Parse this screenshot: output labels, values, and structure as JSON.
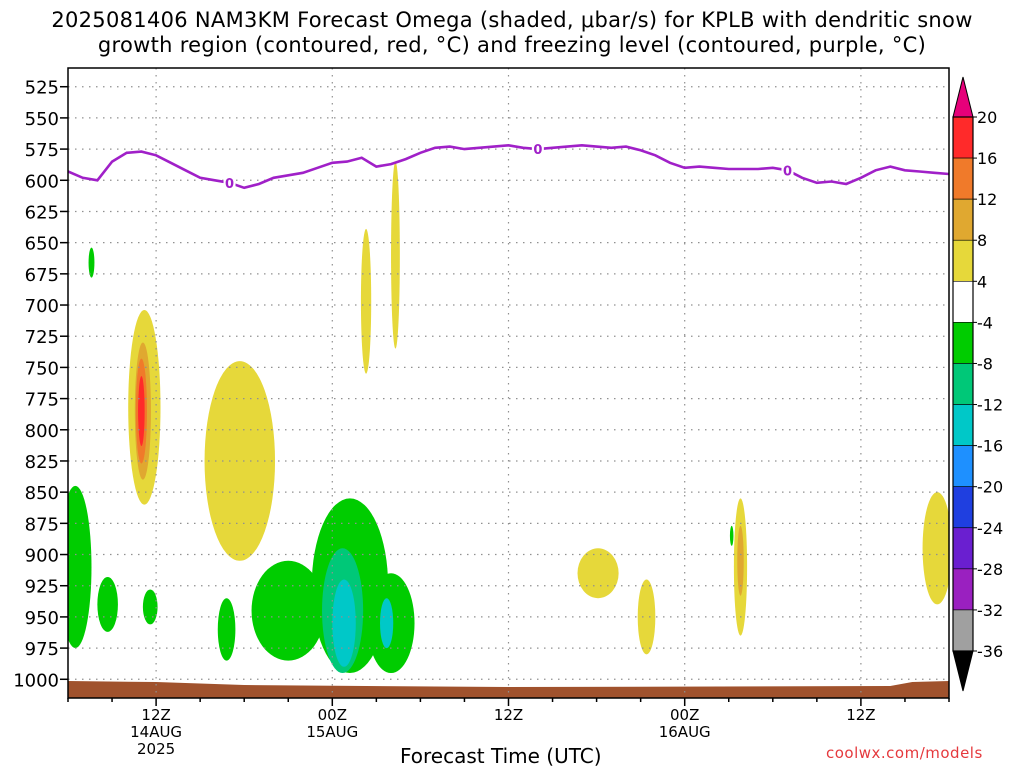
{
  "title_line1": "2025081406 NAM3KM Forecast Omega (shaded, μbar/s) for KPLB with dendritic snow",
  "title_line2": "growth region (contoured, red, °C) and freezing level (contoured, purple, °C)",
  "x_axis_title": "Forecast Time (UTC)",
  "credit": "coolwx.com/models",
  "colors": {
    "freezing_level": "#a020c8",
    "terrain": "#a0522d",
    "grid": "#909090"
  },
  "chart_data": {
    "type": "heatmap",
    "xlabel": "Forecast Time (UTC)",
    "y_scale": "pressure (hPa), reversed",
    "ylim": [
      1015,
      510
    ],
    "xlim_forecast_hours": [
      0,
      60
    ],
    "y_ticks": [
      525,
      550,
      575,
      600,
      625,
      650,
      675,
      700,
      725,
      750,
      775,
      800,
      825,
      850,
      875,
      900,
      925,
      950,
      975,
      1000
    ],
    "x_ticks": [
      {
        "hour": 6,
        "lines": [
          "12Z",
          "14AUG",
          "2025"
        ]
      },
      {
        "hour": 18,
        "lines": [
          "00Z",
          "15AUG"
        ]
      },
      {
        "hour": 30,
        "lines": [
          "12Z"
        ]
      },
      {
        "hour": 42,
        "lines": [
          "00Z",
          "16AUG"
        ]
      },
      {
        "hour": 54,
        "lines": [
          "12Z"
        ]
      }
    ],
    "colorbar": {
      "labels": [
        "20",
        "16",
        "12",
        "8",
        "4",
        "-4",
        "-8",
        "-12",
        "-16",
        "-20",
        "-24",
        "-28",
        "-32",
        "-36"
      ],
      "colors": [
        "#ff2a2a",
        "#f07a2a",
        "#e0a830",
        "#e6d83a",
        "#ffffff",
        "#00cc00",
        "#00c878",
        "#00c8c8",
        "#1e90ff",
        "#1f3fe0",
        "#6a1fd0",
        "#9a20c0",
        "#a0a0a0"
      ],
      "top_arrow_color": "#e6007a",
      "bottom_arrow_color": "#000000"
    },
    "freezing_level": {
      "label": "0",
      "hours": [
        0,
        1,
        2,
        3,
        4,
        5,
        6,
        7,
        8,
        9,
        10,
        11,
        12,
        13,
        14,
        15,
        16,
        17,
        18,
        19,
        20,
        21,
        22,
        23,
        24,
        25,
        26,
        27,
        28,
        29,
        30,
        31,
        32,
        33,
        34,
        35,
        36,
        37,
        38,
        39,
        40,
        41,
        42,
        43,
        44,
        45,
        46,
        47,
        48,
        49,
        50,
        51,
        52,
        53,
        54,
        55,
        56,
        57,
        58,
        59,
        60
      ],
      "pressure_hPa": [
        593,
        598,
        600,
        585,
        578,
        577,
        580,
        586,
        592,
        598,
        600,
        602,
        606,
        603,
        598,
        596,
        594,
        590,
        586,
        585,
        582,
        589,
        587,
        583,
        578,
        574,
        573,
        575,
        574,
        573,
        572,
        574,
        575,
        574,
        573,
        572,
        573,
        574,
        573,
        576,
        580,
        586,
        590,
        589,
        590,
        591,
        591,
        591,
        590,
        592,
        598,
        602,
        601,
        603,
        598,
        592,
        589,
        592,
        593,
        594,
        595
      ],
      "label_hours": [
        11,
        32,
        49
      ]
    },
    "terrain_pressure_hPa": 1003,
    "omega_regions": [
      {
        "level": 4,
        "center": [
          5.2,
          782
        ],
        "radius": [
          1.1,
          78
        ]
      },
      {
        "level": 8,
        "center": [
          5.1,
          785
        ],
        "radius": [
          0.55,
          55
        ]
      },
      {
        "level": 12,
        "center": [
          5.0,
          785
        ],
        "radius": [
          0.38,
          42
        ]
      },
      {
        "level": 16,
        "center": [
          5.0,
          785
        ],
        "radius": [
          0.22,
          28
        ]
      },
      {
        "level": 20,
        "center": [
          4.9,
          785
        ],
        "radius": [
          0.12,
          16
        ]
      },
      {
        "level": 4,
        "center": [
          11.7,
          825
        ],
        "radius": [
          2.4,
          80
        ]
      },
      {
        "level": 4,
        "center": [
          20.3,
          697
        ],
        "radius": [
          0.35,
          58
        ]
      },
      {
        "level": 4,
        "center": [
          22.3,
          660
        ],
        "radius": [
          0.3,
          75
        ]
      },
      {
        "level": 4,
        "center": [
          36.1,
          915
        ],
        "radius": [
          1.4,
          20
        ]
      },
      {
        "level": 4,
        "center": [
          39.4,
          950
        ],
        "radius": [
          0.6,
          30
        ]
      },
      {
        "level": 4,
        "center": [
          45.8,
          910
        ],
        "radius": [
          0.45,
          55
        ]
      },
      {
        "level": 8,
        "center": [
          45.8,
          905
        ],
        "radius": [
          0.22,
          28
        ]
      },
      {
        "level": 4,
        "center": [
          59.2,
          895
        ],
        "radius": [
          1.0,
          45
        ]
      },
      {
        "level": -4,
        "center": [
          1.6,
          666
        ],
        "radius": [
          0.2,
          12
        ]
      },
      {
        "level": -4,
        "center": [
          0.5,
          910
        ],
        "radius": [
          1.1,
          65
        ]
      },
      {
        "level": -4,
        "center": [
          2.7,
          940
        ],
        "radius": [
          0.7,
          22
        ]
      },
      {
        "level": -4,
        "center": [
          5.6,
          942
        ],
        "radius": [
          0.5,
          14
        ]
      },
      {
        "level": -4,
        "center": [
          10.8,
          960
        ],
        "radius": [
          0.6,
          25
        ]
      },
      {
        "level": -4,
        "center": [
          15.0,
          945
        ],
        "radius": [
          2.5,
          40
        ]
      },
      {
        "level": -4,
        "center": [
          19.2,
          925
        ],
        "radius": [
          2.6,
          70
        ]
      },
      {
        "level": -4,
        "center": [
          22.0,
          955
        ],
        "radius": [
          1.6,
          40
        ]
      },
      {
        "level": -4,
        "center": [
          45.2,
          885
        ],
        "radius": [
          0.12,
          8
        ]
      },
      {
        "level": -8,
        "center": [
          18.7,
          945
        ],
        "radius": [
          1.4,
          50
        ]
      },
      {
        "level": -12,
        "center": [
          18.8,
          955
        ],
        "radius": [
          0.8,
          35
        ]
      },
      {
        "level": -12,
        "center": [
          21.7,
          955
        ],
        "radius": [
          0.45,
          20
        ]
      }
    ]
  }
}
